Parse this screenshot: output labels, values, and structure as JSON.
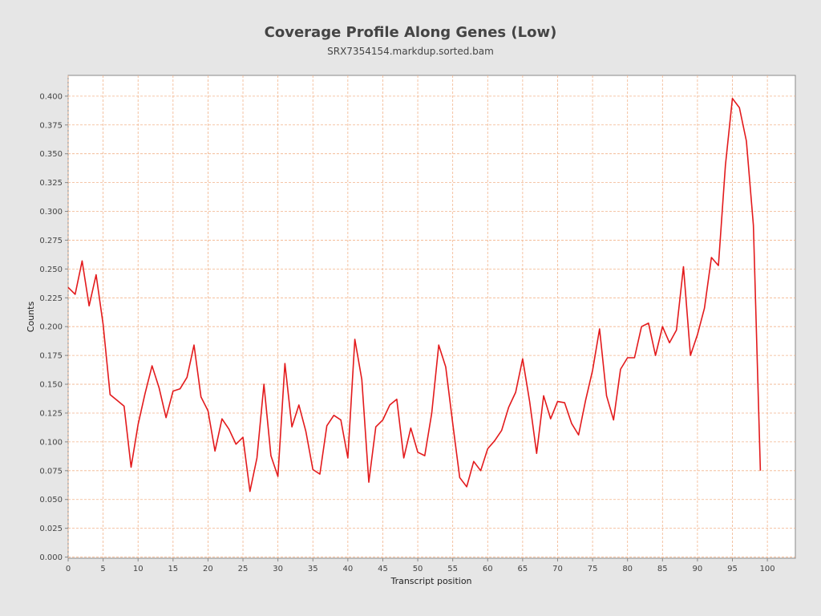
{
  "chart_data": {
    "type": "line",
    "title": "Coverage Profile Along Genes (Low)",
    "subtitle": "SRX7354154.markdup.sorted.bam",
    "xlabel": "Transcript position",
    "ylabel": "Counts",
    "xlim": [
      0,
      104
    ],
    "ylim": [
      -0.001,
      0.418
    ],
    "xticks": [
      "0",
      "5",
      "10",
      "15",
      "20",
      "25",
      "30",
      "35",
      "40",
      "45",
      "50",
      "55",
      "60",
      "65",
      "70",
      "75",
      "80",
      "85",
      "90",
      "95",
      "100"
    ],
    "yticks": [
      "0.000",
      "0.025",
      "0.050",
      "0.075",
      "0.100",
      "0.125",
      "0.150",
      "0.175",
      "0.200",
      "0.225",
      "0.250",
      "0.275",
      "0.300",
      "0.325",
      "0.350",
      "0.375",
      "0.400"
    ],
    "grid": true,
    "series": [
      {
        "name": "coverage",
        "color": "#e31a1c",
        "x": [
          0,
          1,
          2,
          3,
          4,
          5,
          6,
          7,
          8,
          9,
          10,
          11,
          12,
          13,
          14,
          15,
          16,
          17,
          18,
          19,
          20,
          21,
          22,
          23,
          24,
          25,
          26,
          27,
          28,
          29,
          30,
          31,
          32,
          33,
          34,
          35,
          36,
          37,
          38,
          39,
          40,
          41,
          42,
          43,
          44,
          45,
          46,
          47,
          48,
          49,
          50,
          51,
          52,
          53,
          54,
          55,
          56,
          57,
          58,
          59,
          60,
          61,
          62,
          63,
          64,
          65,
          66,
          67,
          68,
          69,
          70,
          71,
          72,
          73,
          74,
          75,
          76,
          77,
          78,
          79,
          80,
          81,
          82,
          83,
          84,
          85,
          86,
          87,
          88,
          89,
          90,
          91,
          92,
          93,
          94,
          95,
          96,
          97,
          98,
          99
        ],
        "values": [
          0.234,
          0.228,
          0.257,
          0.218,
          0.245,
          0.202,
          0.141,
          0.136,
          0.131,
          0.078,
          0.115,
          0.142,
          0.166,
          0.147,
          0.121,
          0.144,
          0.146,
          0.156,
          0.184,
          0.139,
          0.127,
          0.092,
          0.12,
          0.111,
          0.098,
          0.104,
          0.057,
          0.086,
          0.15,
          0.088,
          0.07,
          0.168,
          0.113,
          0.132,
          0.109,
          0.076,
          0.072,
          0.114,
          0.123,
          0.119,
          0.086,
          0.189,
          0.154,
          0.065,
          0.113,
          0.119,
          0.132,
          0.137,
          0.086,
          0.112,
          0.091,
          0.088,
          0.125,
          0.184,
          0.165,
          0.116,
          0.069,
          0.061,
          0.083,
          0.075,
          0.094,
          0.101,
          0.11,
          0.13,
          0.143,
          0.172,
          0.135,
          0.09,
          0.14,
          0.12,
          0.135,
          0.134,
          0.116,
          0.106,
          0.136,
          0.162,
          0.198,
          0.14,
          0.119,
          0.163,
          0.173,
          0.173,
          0.2,
          0.203,
          0.175,
          0.2,
          0.186,
          0.197,
          0.252,
          0.175,
          0.193,
          0.216,
          0.26,
          0.253,
          0.34,
          0.398,
          0.39,
          0.361,
          0.288,
          0.075
        ]
      }
    ]
  },
  "colors": {
    "background": "#e6e6e6",
    "plot_background": "#ffffff",
    "grid": "#f2b48c",
    "line": "#e31a1c"
  }
}
